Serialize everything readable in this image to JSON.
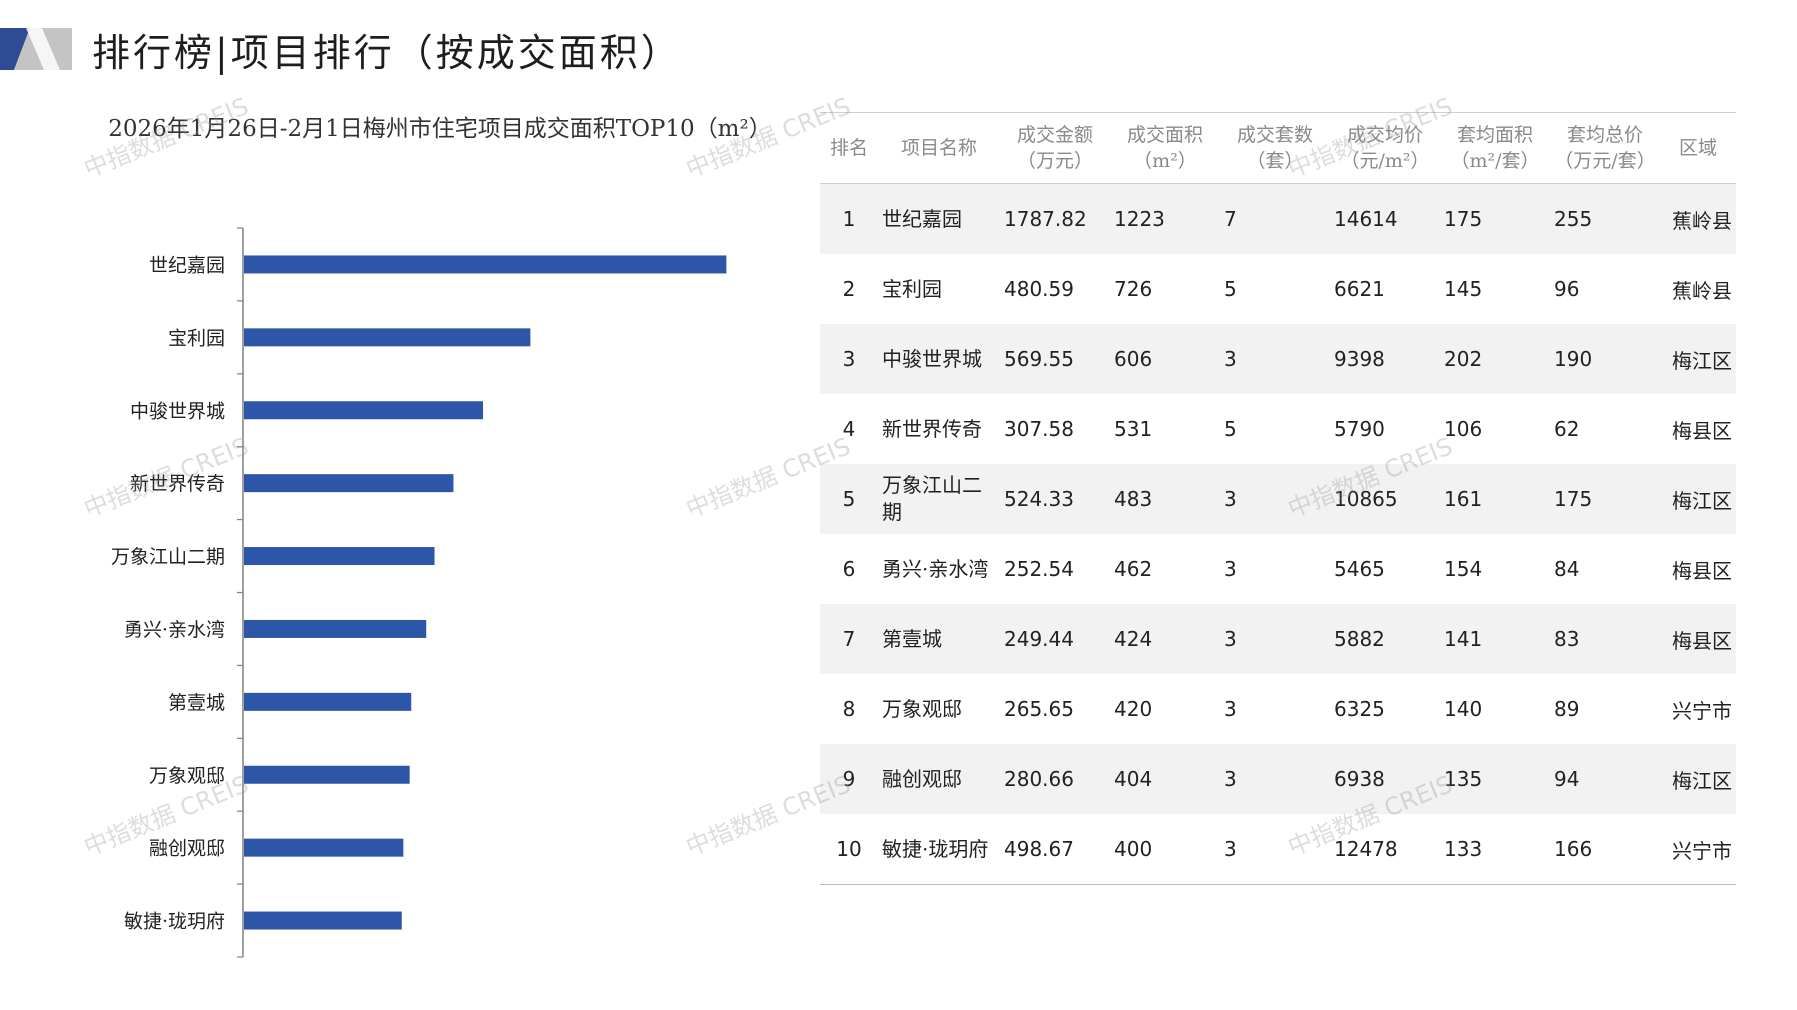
{
  "header": {
    "title": "排行榜|项目排行（按成交面积）"
  },
  "watermark": "中指数据 CREIS",
  "colors": {
    "bar": "#2d56a8",
    "accent_dark": "#2e4b94",
    "accent_gray": "#b9b9b9"
  },
  "chart_data": {
    "type": "bar",
    "orientation": "horizontal",
    "title": "2026年1月26日-2月1日梅州市住宅项目成交面积TOP10（m²）",
    "categories": [
      "世纪嘉园",
      "宝利园",
      "中骏世界城",
      "新世界传奇",
      "万象江山二期",
      "勇兴·亲水湾",
      "第壹城",
      "万象观邸",
      "融创观邸",
      "敏捷·珑玥府"
    ],
    "values": [
      1223,
      726,
      606,
      531,
      483,
      462,
      424,
      420,
      404,
      400
    ],
    "xlim": [
      0,
      1800
    ],
    "grid": false,
    "legend": "none"
  },
  "table": {
    "headers": [
      [
        "排名"
      ],
      [
        "项目名称"
      ],
      [
        "成交金额",
        "（万元）"
      ],
      [
        "成交面积",
        "（m²）"
      ],
      [
        "成交套数",
        "（套）"
      ],
      [
        "成交均价",
        "（元/m²）"
      ],
      [
        "套均面积",
        "（m²/套）"
      ],
      [
        "套均总价",
        "（万元/套）"
      ],
      [
        "区域"
      ]
    ],
    "rows": [
      [
        "1",
        "世纪嘉园",
        "1787.82",
        "1223",
        "7",
        "14614",
        "175",
        "255",
        "蕉岭县"
      ],
      [
        "2",
        "宝利园",
        "480.59",
        "726",
        "5",
        "6621",
        "145",
        "96",
        "蕉岭县"
      ],
      [
        "3",
        "中骏世界城",
        "569.55",
        "606",
        "3",
        "9398",
        "202",
        "190",
        "梅江区"
      ],
      [
        "4",
        "新世界传奇",
        "307.58",
        "531",
        "5",
        "5790",
        "106",
        "62",
        "梅县区"
      ],
      [
        "5",
        "万象江山二期",
        "524.33",
        "483",
        "3",
        "10865",
        "161",
        "175",
        "梅江区"
      ],
      [
        "6",
        "勇兴·亲水湾",
        "252.54",
        "462",
        "3",
        "5465",
        "154",
        "84",
        "梅县区"
      ],
      [
        "7",
        "第壹城",
        "249.44",
        "424",
        "3",
        "5882",
        "141",
        "83",
        "梅县区"
      ],
      [
        "8",
        "万象观邸",
        "265.65",
        "420",
        "3",
        "6325",
        "140",
        "89",
        "兴宁市"
      ],
      [
        "9",
        "融创观邸",
        "280.66",
        "404",
        "3",
        "6938",
        "135",
        "94",
        "梅江区"
      ],
      [
        "10",
        "敏捷·珑玥府",
        "498.67",
        "400",
        "3",
        "12478",
        "133",
        "166",
        "兴宁市"
      ]
    ]
  }
}
